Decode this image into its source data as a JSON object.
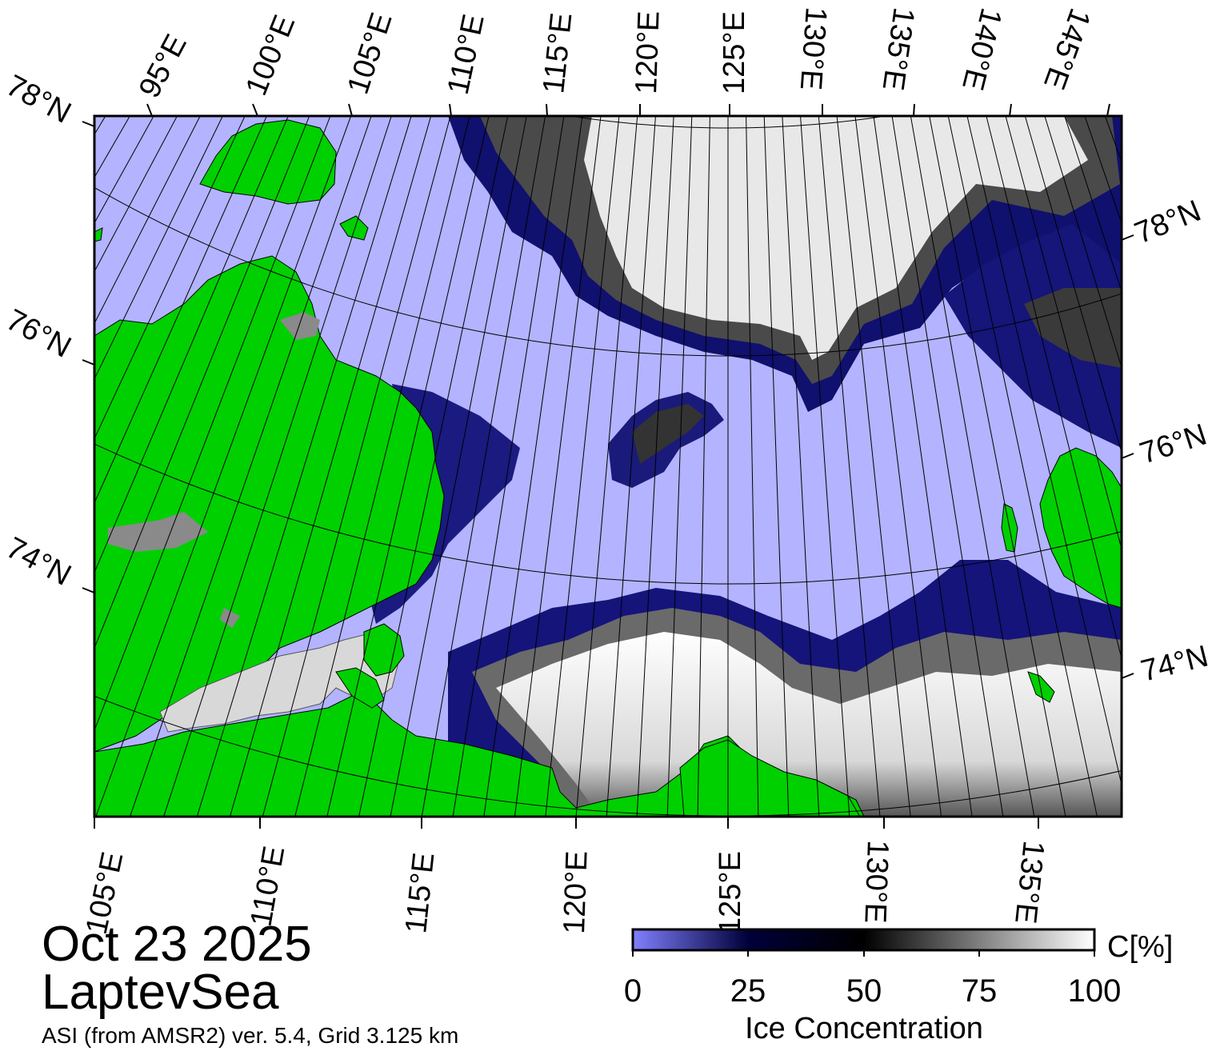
{
  "title": {
    "date": "Oct 23 2025",
    "region": "LaptevSea",
    "source": "ASI (from AMSR2) ver. 5.4,  Grid 3.125 km"
  },
  "colorbar": {
    "unit_label": "C[%]",
    "title": "Ice Concentration",
    "ticks": [
      "0",
      "25",
      "50",
      "75",
      "100"
    ],
    "stops": [
      "#8080ff",
      "#00003a",
      "#000000",
      "#7f7f7f",
      "#ffffff"
    ]
  },
  "map": {
    "top_lon_labels": [
      "95°E",
      "100°E",
      "105°E",
      "110°E",
      "115°E",
      "120°E",
      "125°E",
      "130°E",
      "135°E",
      "140°E",
      "145°E"
    ],
    "bottom_lon_labels": [
      "105°E",
      "110°E",
      "115°E",
      "120°E",
      "125°E",
      "130°E",
      "135°E"
    ],
    "left_lat_labels": [
      "78°N",
      "76°N",
      "74°N"
    ],
    "right_lat_labels": [
      "78°N",
      "76°N",
      "74°N"
    ],
    "colors": {
      "land": "#00d000",
      "open_water": "#b3b3ff",
      "no_data": "#8a8a8a",
      "ice_edge": "#1e1e9a"
    }
  }
}
